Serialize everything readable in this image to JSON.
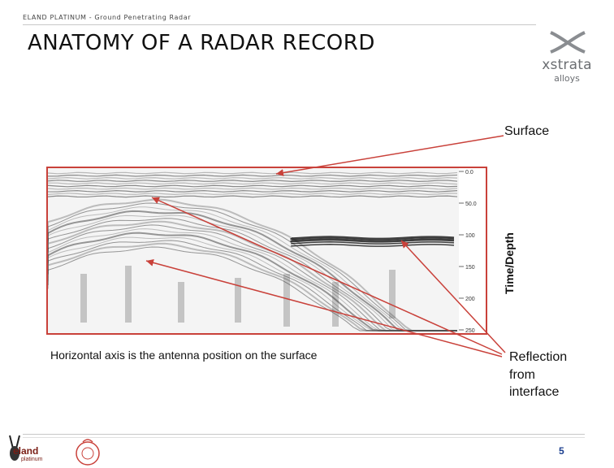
{
  "header": {
    "caption": "ELAND PLATINUM - Ground Penetrating Radar",
    "title": "ANATOMY OF A RADAR RECORD"
  },
  "logo": {
    "word": "xstrata",
    "sub": "alloys"
  },
  "labels": {
    "surface": "Surface",
    "time_depth": "Time/Depth",
    "horizontal_axis": "Horizontal axis is the antenna position on the surface",
    "reflection_line1": "Reflection",
    "reflection_line2": "from",
    "reflection_line3": "interface"
  },
  "depth_scale": {
    "ticks": [
      "0.0",
      "50.0",
      "100",
      "150",
      "200",
      "250"
    ]
  },
  "footer": {
    "page_number": "5",
    "eland_word": "eland",
    "eland_sub": "platinum"
  },
  "colors": {
    "accent_red": "#c9413a",
    "logo_grey": "#6b6e72",
    "page_number_blue": "#1c3f8f"
  }
}
